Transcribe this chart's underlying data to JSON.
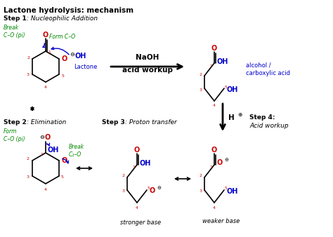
{
  "title": "Lactone hydrolysis: mechanism",
  "bg_color": "#ffffff",
  "figsize": [
    4.74,
    3.38
  ],
  "dpi": 100,
  "black": "#000000",
  "red": "#cc0000",
  "green": "#008800",
  "blue": "#0000cc",
  "step1_label": "Step 1",
  "step1_italic": ": Nucleophilic Addition",
  "step2_label": "Step 2",
  "step2_italic": ": Elimination",
  "step3_label": "Step 3",
  "step3_italic": ": Proton transfer",
  "step4_label": "Step 4:",
  "step4_italic": "Acid workup",
  "naoh_label1": "NaOH",
  "naoh_label2": "acid workup",
  "alcohol_label": "alcohol /\ncarboxylic acid",
  "stronger_base": "stronger base",
  "weaker_base": "weaker base",
  "break_co_pi": "Break\nC–O (pi)",
  "form_co": "Form C–O",
  "form_co_pi": "Form\nC–O (pi)",
  "break_c1o": "Break\nC₁–O",
  "lactone_label": "Lactone"
}
